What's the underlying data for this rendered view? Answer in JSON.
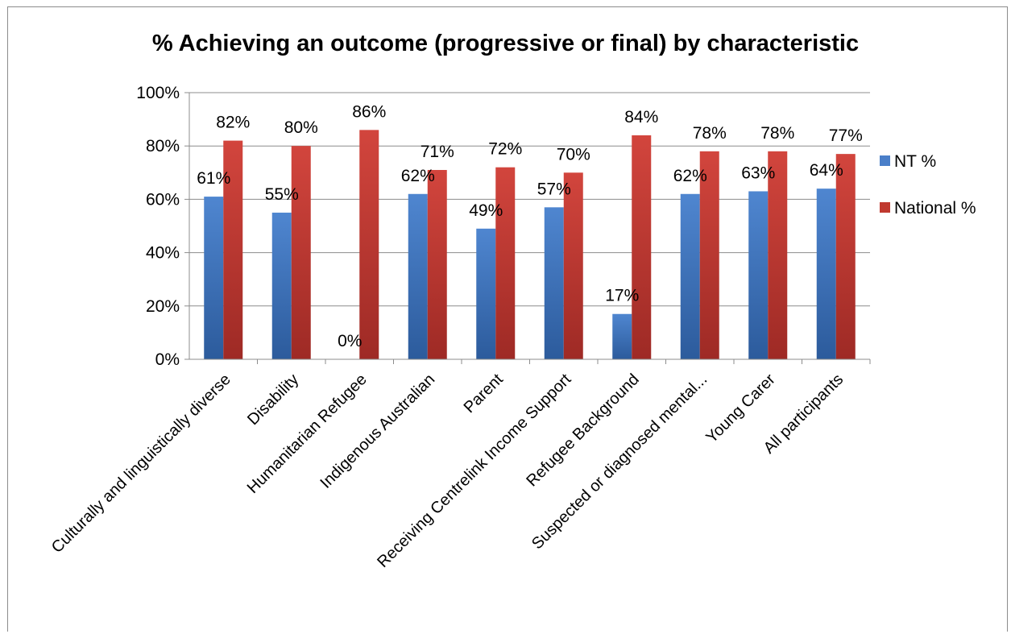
{
  "chart_data": {
    "type": "bar",
    "title": "% Achieving an outcome (progressive or final) by characteristic",
    "categories": [
      "Culturally and linguistically diverse",
      "Disability",
      "Humanitarian Refugee",
      "Indigenous Australian",
      "Parent",
      "Receiving Centrelink Income Support",
      "Refugee Background",
      "Suspected or diagnosed mental...",
      "Young Carer",
      "All participants"
    ],
    "series": [
      {
        "name": "NT %",
        "color": "#4a7fc9",
        "values": [
          61,
          55,
          0,
          62,
          49,
          57,
          17,
          62,
          63,
          64
        ],
        "labels": [
          "61%",
          "55%",
          "0%",
          "62%",
          "49%",
          "57%",
          "17%",
          "62%",
          "63%",
          "64%"
        ]
      },
      {
        "name": "National %",
        "color": "#c0392f",
        "values": [
          82,
          80,
          86,
          71,
          72,
          70,
          84,
          78,
          78,
          77
        ],
        "labels": [
          "82%",
          "80%",
          "86%",
          "71%",
          "72%",
          "70%",
          "84%",
          "78%",
          "78%",
          "77%"
        ]
      }
    ],
    "ylim": [
      0,
      100
    ],
    "yticks": [
      "0%",
      "20%",
      "40%",
      "60%",
      "80%",
      "100%"
    ],
    "xlabel": "",
    "ylabel": "",
    "grid": true,
    "legend": "right"
  }
}
